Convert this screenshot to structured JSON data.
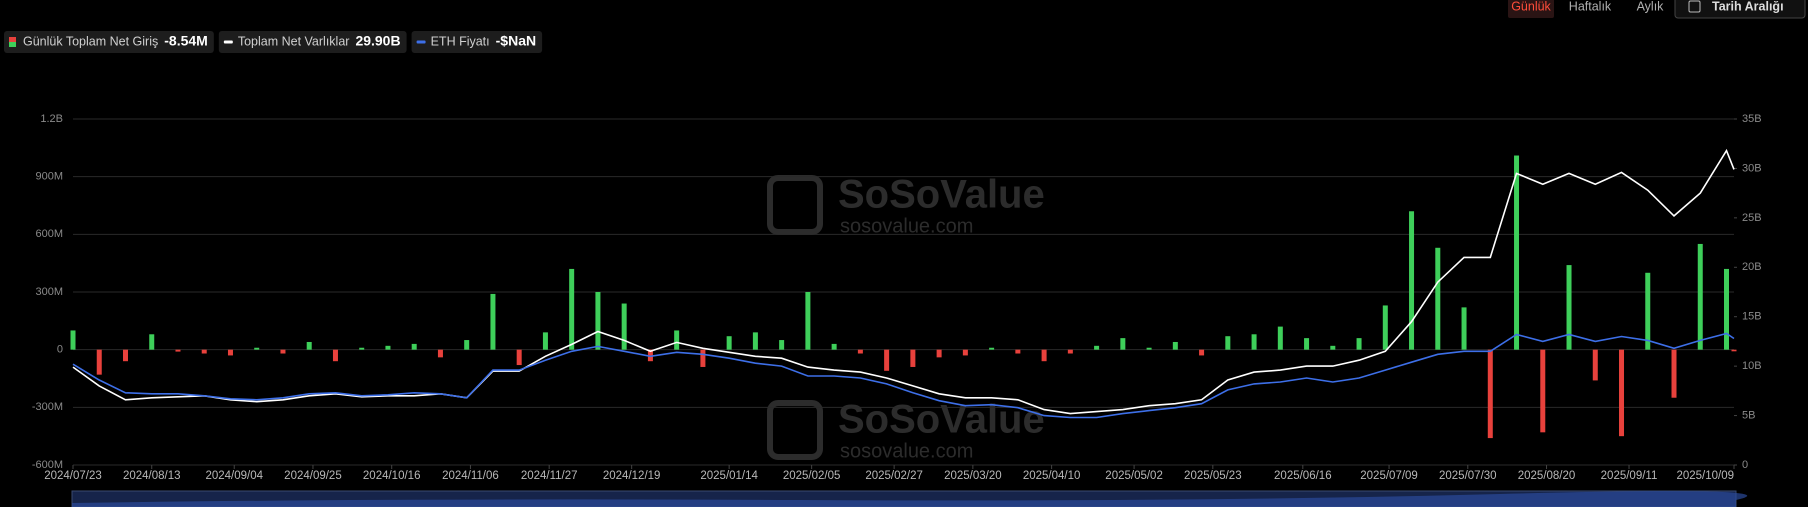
{
  "tabs": [
    "Günlük",
    "Haftalık",
    "Aylık"
  ],
  "date_range_button": "Tarih Aralığı",
  "watermark": {
    "name": "SoSoValue",
    "url": "sosovalue.com"
  },
  "chart_data": {
    "type": "bar",
    "x": [
      "2024/07/23",
      "2024/07/30",
      "2024/08/06",
      "2024/08/13",
      "2024/08/20",
      "2024/08/27",
      "2024/09/03",
      "2024/09/10",
      "2024/09/17",
      "2024/09/24",
      "2024/10/01",
      "2024/10/08",
      "2024/10/15",
      "2024/10/22",
      "2024/10/29",
      "2024/11/05",
      "2024/11/12",
      "2024/11/19",
      "2024/11/26",
      "2024/12/03",
      "2024/12/10",
      "2024/12/17",
      "2024/12/24",
      "2024/12/31",
      "2025/01/07",
      "2025/01/14",
      "2025/01/21",
      "2025/01/28",
      "2025/02/04",
      "2025/02/11",
      "2025/02/18",
      "2025/02/25",
      "2025/03/04",
      "2025/03/11",
      "2025/03/18",
      "2025/03/25",
      "2025/04/01",
      "2025/04/08",
      "2025/04/15",
      "2025/04/22",
      "2025/04/29",
      "2025/05/06",
      "2025/05/13",
      "2025/05/20",
      "2025/05/27",
      "2025/06/03",
      "2025/06/10",
      "2025/06/17",
      "2025/06/24",
      "2025/07/01",
      "2025/07/08",
      "2025/07/15",
      "2025/07/22",
      "2025/07/29",
      "2025/08/05",
      "2025/08/12",
      "2025/08/19",
      "2025/08/26",
      "2025/09/02",
      "2025/09/09",
      "2025/09/16",
      "2025/09/23",
      "2025/09/30",
      "2025/10/07",
      "2025/10/09"
    ],
    "xlim": [
      "2024/07/23",
      "2025/10/09"
    ],
    "xticks": [
      "2024/07/23",
      "2024/08/13",
      "2024/09/04",
      "2024/09/25",
      "2024/10/16",
      "2024/11/06",
      "2024/11/27",
      "2024/12/19",
      "2025/01/14",
      "2025/02/05",
      "2025/02/27",
      "2025/03/20",
      "2025/04/10",
      "2025/05/02",
      "2025/05/23",
      "2025/06/16",
      "2025/07/09",
      "2025/07/30",
      "2025/08/20",
      "2025/09/11",
      "2025/10/09"
    ],
    "ylim": [
      -600,
      1200
    ],
    "yticks": [
      {
        "value": -600,
        "label": "-600M"
      },
      {
        "value": -300,
        "label": "-300M"
      },
      0,
      {
        "value": 300,
        "label": "300M"
      },
      {
        "value": 600,
        "label": "600M"
      },
      {
        "value": 900,
        "label": "900M"
      },
      {
        "value": 1200,
        "label": "1.2B"
      }
    ],
    "y2lim": [
      0,
      35
    ],
    "y2ticks": [
      0,
      {
        "value": 5,
        "label": "5B"
      },
      {
        "value": 10,
        "label": "10B"
      },
      {
        "value": 15,
        "label": "15B"
      },
      {
        "value": 20,
        "label": "20B"
      },
      {
        "value": 25,
        "label": "25B"
      },
      {
        "value": 30,
        "label": "30B"
      },
      {
        "value": 35,
        "label": "35B"
      }
    ],
    "grid": true,
    "series": [
      {
        "name": "Günlük Toplam Net Giriş",
        "latest": "-8.54M",
        "type": "bar",
        "color": "#3ecf5a",
        "negative_color": "#e8413c",
        "values": [
          100,
          -130,
          -60,
          80,
          -10,
          -20,
          -30,
          10,
          -20,
          40,
          -60,
          10,
          20,
          30,
          -40,
          50,
          290,
          -80,
          90,
          420,
          300,
          240,
          -60,
          100,
          -90,
          70,
          90,
          50,
          300,
          30,
          -20,
          -110,
          -90,
          -40,
          -30,
          10,
          -20,
          -60,
          -20,
          20,
          60,
          10,
          40,
          -30,
          70,
          80,
          120,
          60,
          20,
          60,
          230,
          720,
          530,
          220,
          -460,
          1010,
          -430,
          440,
          -160,
          -450,
          400,
          -250,
          550,
          420,
          -8.54
        ]
      },
      {
        "name": "Toplam Net Varlıklar",
        "latest": "29.90B",
        "type": "line",
        "axis": "y2",
        "color": "#ffffff",
        "values": [
          9.9,
          8,
          6.6,
          6.8,
          6.9,
          7,
          6.6,
          6.4,
          6.6,
          7,
          7.2,
          6.9,
          7,
          7,
          7.2,
          6.8,
          9.5,
          9.5,
          11,
          12.2,
          13.5,
          12.6,
          11.5,
          12.4,
          11.8,
          11.4,
          11,
          10.8,
          9.9,
          9.6,
          9.4,
          8.8,
          8,
          7.2,
          6.8,
          6.8,
          6.6,
          5.6,
          5.2,
          5.4,
          5.6,
          6,
          6.2,
          6.6,
          8.6,
          9.4,
          9.6,
          10,
          10,
          10.6,
          11.5,
          14.5,
          18.5,
          21,
          21,
          29.5,
          28.4,
          29.5,
          28.4,
          29.6,
          27.8,
          25.2,
          27.5,
          31.8,
          29.9
        ]
      },
      {
        "name": "ETH Fiyatı",
        "latest": "-$NaN",
        "type": "line",
        "axis": "y2",
        "color": "#3d6fe8",
        "values": [
          10.2,
          8.6,
          7.3,
          7.2,
          7.2,
          7,
          6.7,
          6.6,
          6.8,
          7.2,
          7.3,
          7,
          7.1,
          7.3,
          7.2,
          6.8,
          9.6,
          9.6,
          10.6,
          11.5,
          12,
          11.5,
          11,
          11.4,
          11.2,
          10.8,
          10.3,
          10,
          9,
          9,
          8.8,
          8.2,
          7.3,
          6.5,
          6,
          6.1,
          5.8,
          5,
          4.8,
          4.8,
          5.2,
          5.5,
          5.8,
          6.2,
          7.6,
          8.2,
          8.4,
          8.8,
          8.4,
          8.8,
          9.6,
          10.4,
          11.2,
          11.5,
          11.5,
          13.2,
          12.5,
          13.2,
          12.5,
          13,
          12.6,
          11.8,
          12.6,
          13.3,
          12.8
        ]
      }
    ]
  }
}
